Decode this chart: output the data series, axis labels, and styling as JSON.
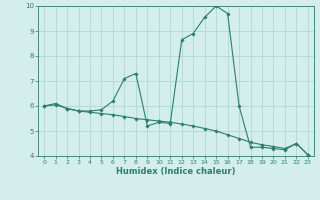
{
  "xlabel": "Humidex (Indice chaleur)",
  "line1_x": [
    0,
    1,
    2,
    3,
    4,
    5,
    6,
    7,
    8,
    9,
    10,
    11,
    12,
    13,
    14,
    15,
    16,
    17,
    18,
    19,
    20,
    21,
    22,
    23
  ],
  "line1_y": [
    6.0,
    6.1,
    5.9,
    5.8,
    5.8,
    5.85,
    6.2,
    7.1,
    7.3,
    5.2,
    5.35,
    5.3,
    8.65,
    8.9,
    9.55,
    10.0,
    9.7,
    6.0,
    4.35,
    4.35,
    4.3,
    4.25,
    4.5,
    4.05
  ],
  "line2_x": [
    0,
    1,
    2,
    3,
    4,
    5,
    6,
    7,
    8,
    9,
    10,
    11,
    12,
    13,
    14,
    15,
    16,
    17,
    18,
    19,
    20,
    21,
    22,
    23
  ],
  "line2_y": [
    6.0,
    6.05,
    5.9,
    5.8,
    5.75,
    5.7,
    5.65,
    5.58,
    5.5,
    5.45,
    5.4,
    5.35,
    5.28,
    5.2,
    5.1,
    5.0,
    4.85,
    4.7,
    4.55,
    4.45,
    4.38,
    4.3,
    4.5,
    4.05
  ],
  "line_color": "#2d7d6e",
  "marker_color": "#2d7d6e",
  "bg_color": "#d4eeeb",
  "grid_color": "#b0d8d4",
  "xlim": [
    -0.5,
    23.5
  ],
  "ylim": [
    4,
    10
  ],
  "yticks": [
    4,
    5,
    6,
    7,
    8,
    9,
    10
  ],
  "xticks": [
    0,
    1,
    2,
    3,
    4,
    5,
    6,
    7,
    8,
    9,
    10,
    11,
    12,
    13,
    14,
    15,
    16,
    17,
    18,
    19,
    20,
    21,
    22,
    23
  ],
  "figsize": [
    3.2,
    2.0
  ],
  "dpi": 100
}
